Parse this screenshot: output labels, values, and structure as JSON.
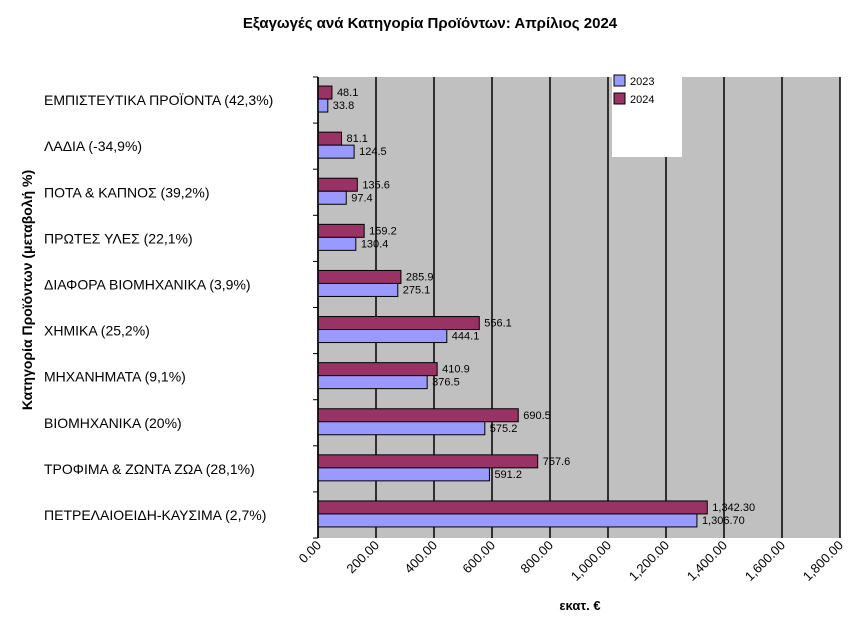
{
  "chart_data": {
    "type": "bar",
    "orientation": "horizontal",
    "title": "Εξαγωγές ανά Κατηγορία Προϊόντων: Απρίλιος 2024",
    "xlabel": "εκατ. €",
    "ylabel": "Κατηγορία Προϊόντων (μεταβολή %)",
    "xlim": [
      0,
      1800
    ],
    "grid": true,
    "legend_position": "top-right",
    "categories": [
      "ΕΜΠΙΣΤΕΥΤΙΚΑ ΠΡΟΪΟΝΤΑ (42,3%)",
      "ΛΑΔΙΑ (-34,9%)",
      "ΠΟΤΑ & ΚΑΠΝΟΣ (39,2%)",
      "ΠΡΩΤΕΣ ΥΛΕΣ (22,1%)",
      "ΔΙΑΦΟΡΑ ΒΙΟΜΗΧΑΝΙΚΑ (3,9%)",
      "ΧΗΜΙΚΑ (25,2%)",
      "ΜΗΧΑΝΗΜΑΤΑ (9,1%)",
      "ΒΙΟΜΗΧΑΝΙΚΑ (20%)",
      "ΤΡΟΦΙΜΑ & ΖΩΝΤΑ ΖΩΑ (28,1%)",
      "ΠΕΤΡΕΛΑΙΟΕΙΔΗ-ΚΑΥΣΙΜΑ (2,7%)"
    ],
    "x_ticks": [
      "0.00",
      "200.00",
      "400.00",
      "600.00",
      "800.00",
      "1,000.00",
      "1,200.00",
      "1,400.00",
      "1,600.00",
      "1,800.00"
    ],
    "series": [
      {
        "name": "2023",
        "color": "#9999ff",
        "values": [
          33.8,
          124.5,
          97.4,
          130.4,
          275.1,
          444.1,
          376.5,
          575.2,
          591.2,
          1306.7
        ],
        "labels": [
          "33.8",
          "124.5",
          "97.4",
          "130.4",
          "275.1",
          "444.1",
          "376.5",
          "575.2",
          "591.2",
          "1,306.70"
        ]
      },
      {
        "name": "2024",
        "color": "#993366",
        "values": [
          48.1,
          81.1,
          135.6,
          159.2,
          285.9,
          556.1,
          410.9,
          690.5,
          757.6,
          1342.3
        ],
        "labels": [
          "48.1",
          "81.1",
          "135.6",
          "159.2",
          "285.9",
          "556.1",
          "410.9",
          "690.5",
          "757.6",
          "1,342.30"
        ]
      }
    ],
    "plot_background": "#c0c0c0"
  }
}
